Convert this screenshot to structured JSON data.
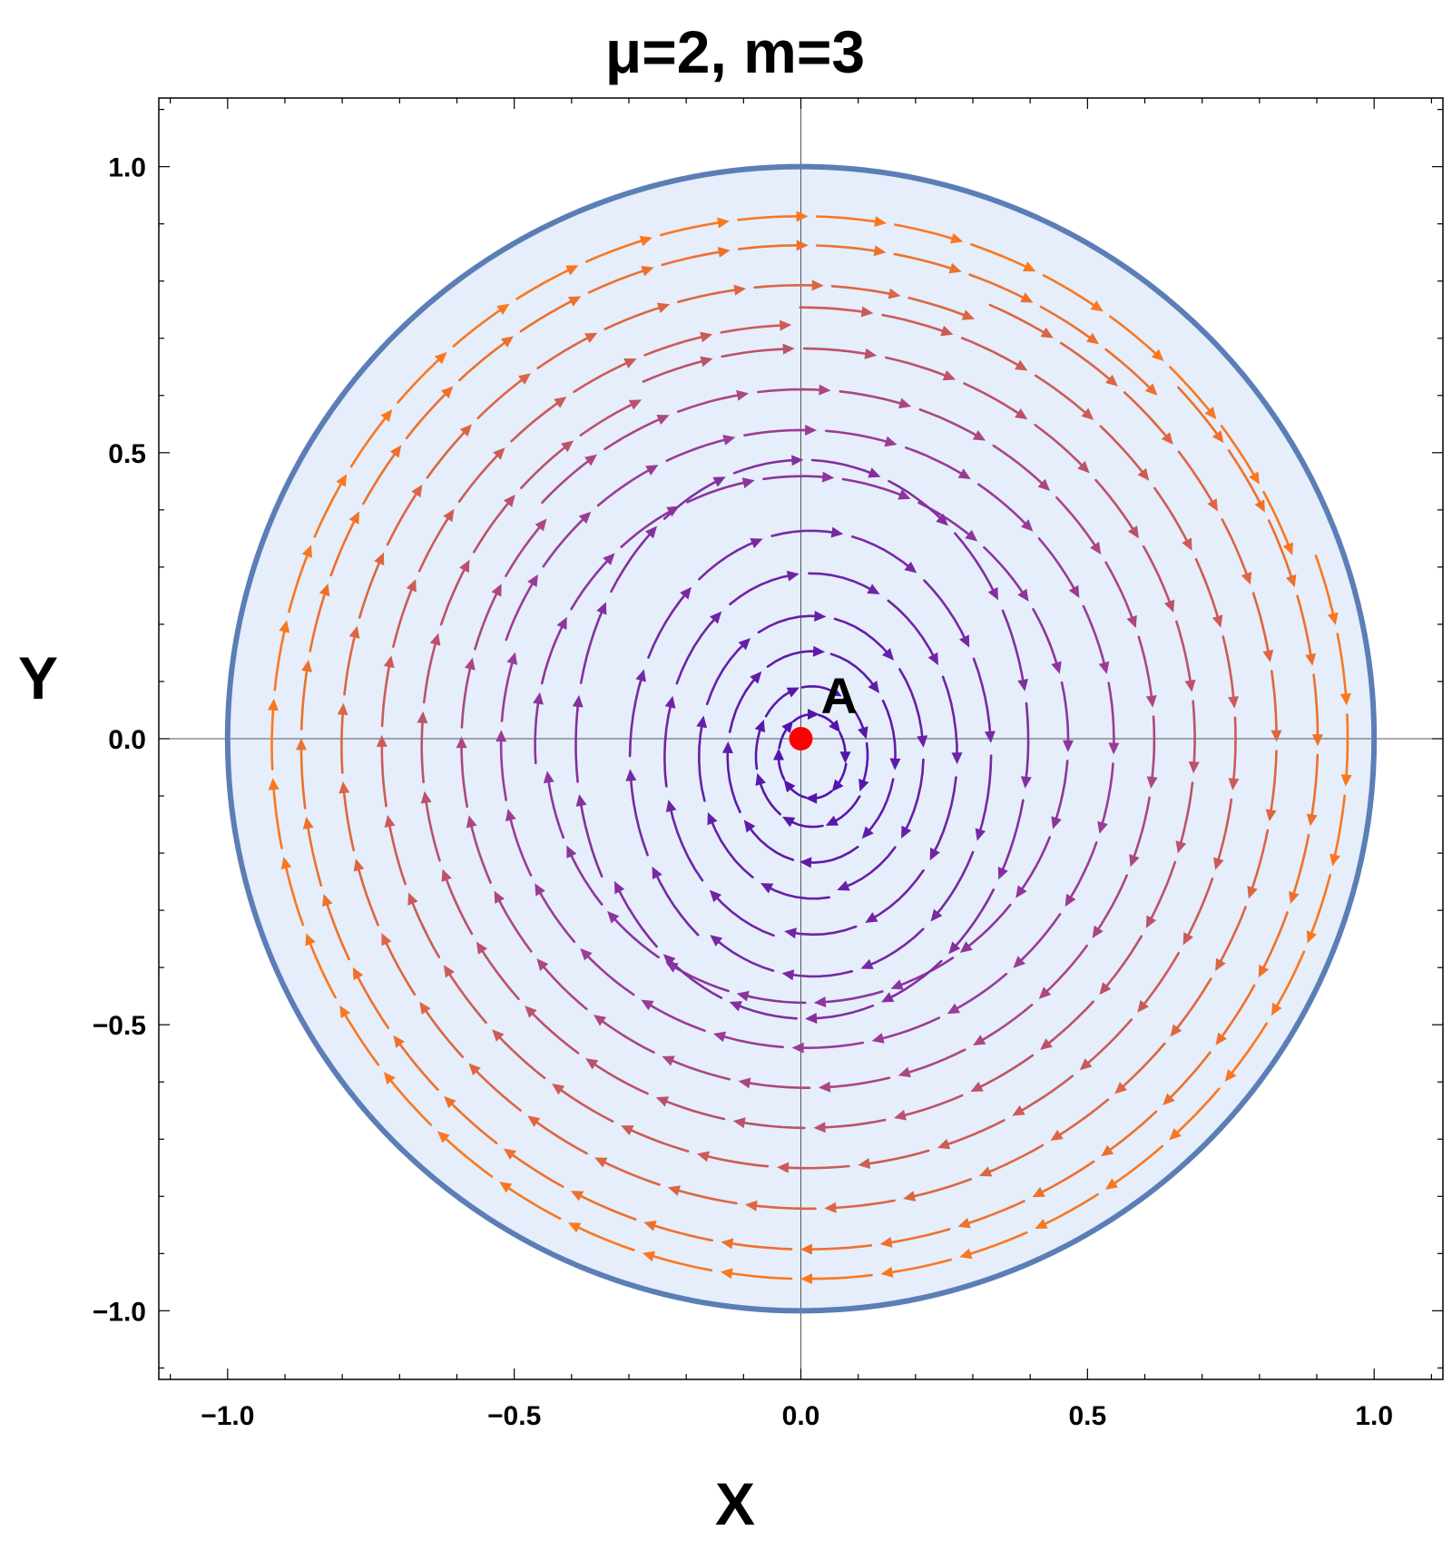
{
  "chart_data": {
    "type": "streamplot",
    "title": "μ=2, m=3",
    "xlabel": "X",
    "ylabel": "Y",
    "xlim": [
      -1.12,
      1.12
    ],
    "ylim": [
      -1.12,
      1.12
    ],
    "x_ticks": [
      -1.0,
      -0.5,
      0.0,
      0.5,
      1.0
    ],
    "y_ticks": [
      -1.0,
      -0.5,
      0.0,
      0.5,
      1.0
    ],
    "x_tick_labels": [
      "−1.0",
      "−0.5",
      "0.0",
      "0.5",
      "1.0"
    ],
    "y_tick_labels": [
      "−1.0",
      "−0.5",
      "0.0",
      "0.5",
      "1.0"
    ],
    "grid": false,
    "region": {
      "shape": "disk",
      "center": [
        0,
        0
      ],
      "radius": 1.0,
      "fill_color": "#e5eefa",
      "edge_color": "#5b7eb6"
    },
    "flow": {
      "direction": "clockwise",
      "spiral": "inward toward origin",
      "color_inner": "#4b0fae",
      "color_middle": "#963a9a",
      "color_outer": "#ff7a18",
      "stream_radii": [
        0.95,
        0.9,
        0.83,
        0.76,
        0.69,
        0.62,
        0.55,
        0.47,
        0.4,
        0.32,
        0.26,
        0.2,
        0.15,
        0.1,
        0.06
      ]
    },
    "points": [
      {
        "label": "A",
        "x": 0.0,
        "y": 0.0,
        "color": "#ff0000"
      }
    ]
  }
}
